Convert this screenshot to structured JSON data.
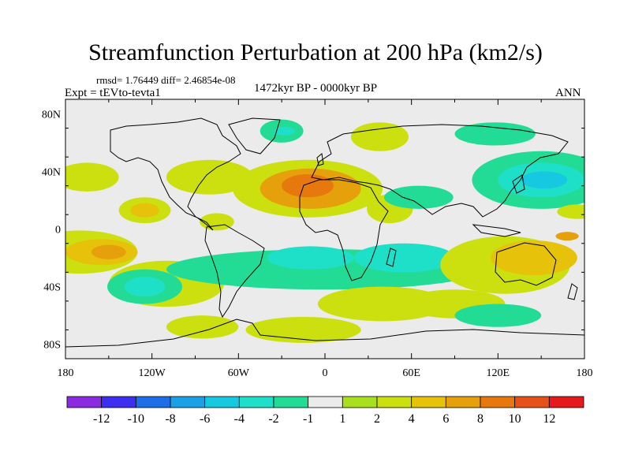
{
  "title": "Streamfunction Perturbation at 200 hPa (km2/s)",
  "stats": "rmsd= 1.76449 diff= 2.46854e-08",
  "experiment": "Expt = tEVto-tevta1",
  "period": "1472kyr BP - 0000kyr BP",
  "season": "ANN",
  "lat_labels": [
    "80N",
    "40N",
    "0",
    "40S",
    "80S"
  ],
  "lon_labels": [
    "180",
    "120W",
    "60W",
    "0",
    "60E",
    "120E",
    "180"
  ],
  "colorbar": {
    "colors": [
      "#8a2be2",
      "#3c2ff0",
      "#1e6ee8",
      "#1aa0e6",
      "#16c8e0",
      "#1ee0c8",
      "#22dc96",
      "#ebebeb",
      "#a8e01e",
      "#cce010",
      "#e6c20a",
      "#e6a00c",
      "#e6780e",
      "#e6501a",
      "#e61a1a"
    ],
    "labels": [
      "-12",
      "-10",
      "-8",
      "-6",
      "-4",
      "-2",
      "-1",
      "1",
      "2",
      "4",
      "6",
      "8",
      "10",
      "12"
    ]
  },
  "anomalies": [
    {
      "lon": -165,
      "lat": 36,
      "rx": 22,
      "ry": 10,
      "level": 2
    },
    {
      "lon": -125,
      "lat": 13,
      "rx": 18,
      "ry": 9,
      "level": 2
    },
    {
      "lon": -125,
      "lat": 13,
      "rx": 10,
      "ry": 5,
      "level": 3
    },
    {
      "lon": -80,
      "lat": 36,
      "rx": 30,
      "ry": 12,
      "level": 2
    },
    {
      "lon": -12,
      "lat": 28,
      "rx": 52,
      "ry": 20,
      "level": 2
    },
    {
      "lon": -10,
      "lat": 28,
      "rx": 35,
      "ry": 14,
      "level": 4
    },
    {
      "lon": -12,
      "lat": 30,
      "rx": 18,
      "ry": 8,
      "level": 5
    },
    {
      "lon": 45,
      "lat": 14,
      "rx": 16,
      "ry": 10,
      "level": 2
    },
    {
      "lon": -30,
      "lat": 68,
      "rx": 15,
      "ry": 8,
      "level": -1
    },
    {
      "lon": -28,
      "lat": 68,
      "rx": 7,
      "ry": 3,
      "level": -2
    },
    {
      "lon": 38,
      "lat": 64,
      "rx": 20,
      "ry": 10,
      "level": 2
    },
    {
      "lon": 118,
      "lat": 66,
      "rx": 28,
      "ry": 8,
      "level": -1
    },
    {
      "lon": 150,
      "lat": 34,
      "rx": 48,
      "ry": 20,
      "level": -1
    },
    {
      "lon": 150,
      "lat": 34,
      "rx": 30,
      "ry": 12,
      "level": -2
    },
    {
      "lon": 152,
      "lat": 34,
      "rx": 16,
      "ry": 6,
      "level": -3
    },
    {
      "lon": 65,
      "lat": 22,
      "rx": 24,
      "ry": 8,
      "level": -1
    },
    {
      "lon": 175,
      "lat": 12,
      "rx": 14,
      "ry": 5,
      "level": 2
    },
    {
      "lon": -170,
      "lat": -16,
      "rx": 40,
      "ry": 15,
      "level": 2
    },
    {
      "lon": -155,
      "lat": -16,
      "rx": 25,
      "ry": 9,
      "level": 3
    },
    {
      "lon": -150,
      "lat": -16,
      "rx": 12,
      "ry": 5,
      "level": 4
    },
    {
      "lon": -75,
      "lat": 5,
      "rx": 12,
      "ry": 6,
      "level": 2
    },
    {
      "lon": -110,
      "lat": -38,
      "rx": 40,
      "ry": 16,
      "level": 2
    },
    {
      "lon": -125,
      "lat": -40,
      "rx": 26,
      "ry": 12,
      "level": -1
    },
    {
      "lon": -125,
      "lat": -40,
      "rx": 14,
      "ry": 7,
      "level": -2
    },
    {
      "lon": 0,
      "lat": -28,
      "rx": 110,
      "ry": 14,
      "level": -1
    },
    {
      "lon": -10,
      "lat": -20,
      "rx": 30,
      "ry": 8,
      "level": -2
    },
    {
      "lon": 55,
      "lat": -20,
      "rx": 35,
      "ry": 10,
      "level": -2
    },
    {
      "lon": 90,
      "lat": -52,
      "rx": 35,
      "ry": 10,
      "level": 2
    },
    {
      "lon": 40,
      "lat": -52,
      "rx": 45,
      "ry": 12,
      "level": 2
    },
    {
      "lon": -15,
      "lat": -70,
      "rx": 40,
      "ry": 9,
      "level": 2
    },
    {
      "lon": -85,
      "lat": -68,
      "rx": 25,
      "ry": 8,
      "level": 2
    },
    {
      "lon": 125,
      "lat": -25,
      "rx": 45,
      "ry": 20,
      "level": 2
    },
    {
      "lon": 145,
      "lat": -20,
      "rx": 30,
      "ry": 12,
      "level": 3
    },
    {
      "lon": 120,
      "lat": -60,
      "rx": 30,
      "ry": 8,
      "level": -1
    },
    {
      "lon": 168,
      "lat": -5,
      "rx": 8,
      "ry": 3,
      "level": 4
    }
  ]
}
